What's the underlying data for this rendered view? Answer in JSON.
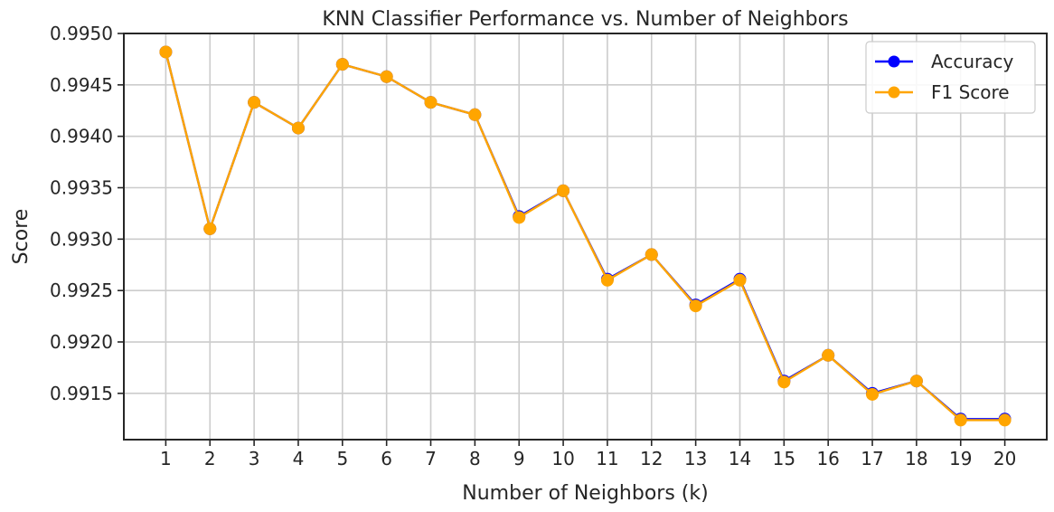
{
  "chart_data": {
    "type": "line",
    "title": "KNN Classifier Performance vs. Number of Neighbors",
    "xlabel": "Number of Neighbors (k)",
    "ylabel": "Score",
    "x": [
      1,
      2,
      3,
      4,
      5,
      6,
      7,
      8,
      9,
      10,
      11,
      12,
      13,
      14,
      15,
      16,
      17,
      18,
      19,
      20
    ],
    "ylim": [
      0.99105,
      0.995
    ],
    "yticks": [
      0.9915,
      0.992,
      0.9925,
      0.993,
      0.9935,
      0.994,
      0.9945,
      0.995
    ],
    "ytick_labels": [
      "0.9915",
      "0.9920",
      "0.9925",
      "0.9930",
      "0.9935",
      "0.9940",
      "0.9945",
      "0.9950"
    ],
    "grid": true,
    "legend_position": "top-right",
    "series": [
      {
        "name": "Accuracy",
        "color": "#0000ff",
        "values": [
          0.99482,
          0.9931,
          0.99433,
          0.99408,
          0.9947,
          0.99458,
          0.99433,
          0.99421,
          0.99322,
          0.99347,
          0.99261,
          0.99285,
          0.99236,
          0.99261,
          0.99162,
          0.99187,
          0.9915,
          0.99162,
          0.99125,
          0.99125
        ]
      },
      {
        "name": "F1 Score",
        "color": "#ffa500",
        "values": [
          0.99482,
          0.9931,
          0.99433,
          0.99408,
          0.9947,
          0.99458,
          0.99433,
          0.99421,
          0.99321,
          0.99347,
          0.9926,
          0.99285,
          0.99235,
          0.9926,
          0.99161,
          0.99187,
          0.99149,
          0.99162,
          0.99124,
          0.99124
        ]
      }
    ]
  }
}
